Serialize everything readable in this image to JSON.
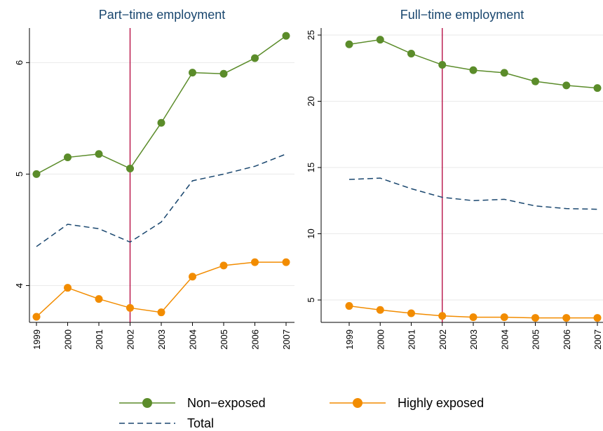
{
  "chart_data": [
    {
      "type": "line",
      "title": "Part−time employment",
      "x": [
        1999,
        2000,
        2001,
        2002,
        2003,
        2004,
        2005,
        2006,
        2007
      ],
      "xlim": [
        1999,
        2007
      ],
      "xticks": [
        1999,
        2000,
        2001,
        2002,
        2003,
        2004,
        2005,
        2006,
        2007
      ],
      "ylim": [
        3.67,
        6.31
      ],
      "yticks": [
        4,
        5,
        6
      ],
      "grid": true,
      "vline": 2002,
      "vline_color": "#b2003a",
      "series": [
        {
          "name": "Non−exposed",
          "color": "#5b8c2a",
          "marker": true,
          "values": [
            5.0,
            5.15,
            5.18,
            5.05,
            5.46,
            5.91,
            5.9,
            6.04,
            6.24
          ]
        },
        {
          "name": "Highly exposed",
          "color": "#f28c00",
          "marker": true,
          "values": [
            3.72,
            3.98,
            3.88,
            3.8,
            3.76,
            4.08,
            4.18,
            4.21,
            4.21
          ]
        },
        {
          "name": "Total",
          "color": "#1a476f",
          "dashed": true,
          "values": [
            4.35,
            4.55,
            4.51,
            4.39,
            4.57,
            4.94,
            5.0,
            5.07,
            5.18
          ]
        }
      ]
    },
    {
      "type": "line",
      "title": "Full−time employment",
      "x": [
        1999,
        2000,
        2001,
        2002,
        2003,
        2004,
        2005,
        2006,
        2007
      ],
      "xlim": [
        1999,
        2007
      ],
      "xticks": [
        1999,
        2000,
        2001,
        2002,
        2003,
        2004,
        2005,
        2006,
        2007
      ],
      "ylim": [
        3.31,
        25.53
      ],
      "yticks": [
        5,
        10,
        15,
        20,
        25
      ],
      "grid": true,
      "vline": 2002,
      "vline_color": "#b2003a",
      "series": [
        {
          "color": "#5b8c2a",
          "marker": true,
          "values": [
            24.3,
            24.65,
            23.6,
            22.75,
            22.35,
            22.15,
            21.5,
            21.2,
            21.0
          ]
        },
        {
          "color": "#f28c00",
          "marker": true,
          "values": [
            4.55,
            4.25,
            4.0,
            3.8,
            3.7,
            3.7,
            3.65,
            3.65,
            3.65
          ]
        },
        {
          "color": "#1a476f",
          "dashed": true,
          "values": [
            14.1,
            14.2,
            13.4,
            12.75,
            12.5,
            12.6,
            12.1,
            11.9,
            11.85
          ]
        }
      ]
    }
  ]
}
